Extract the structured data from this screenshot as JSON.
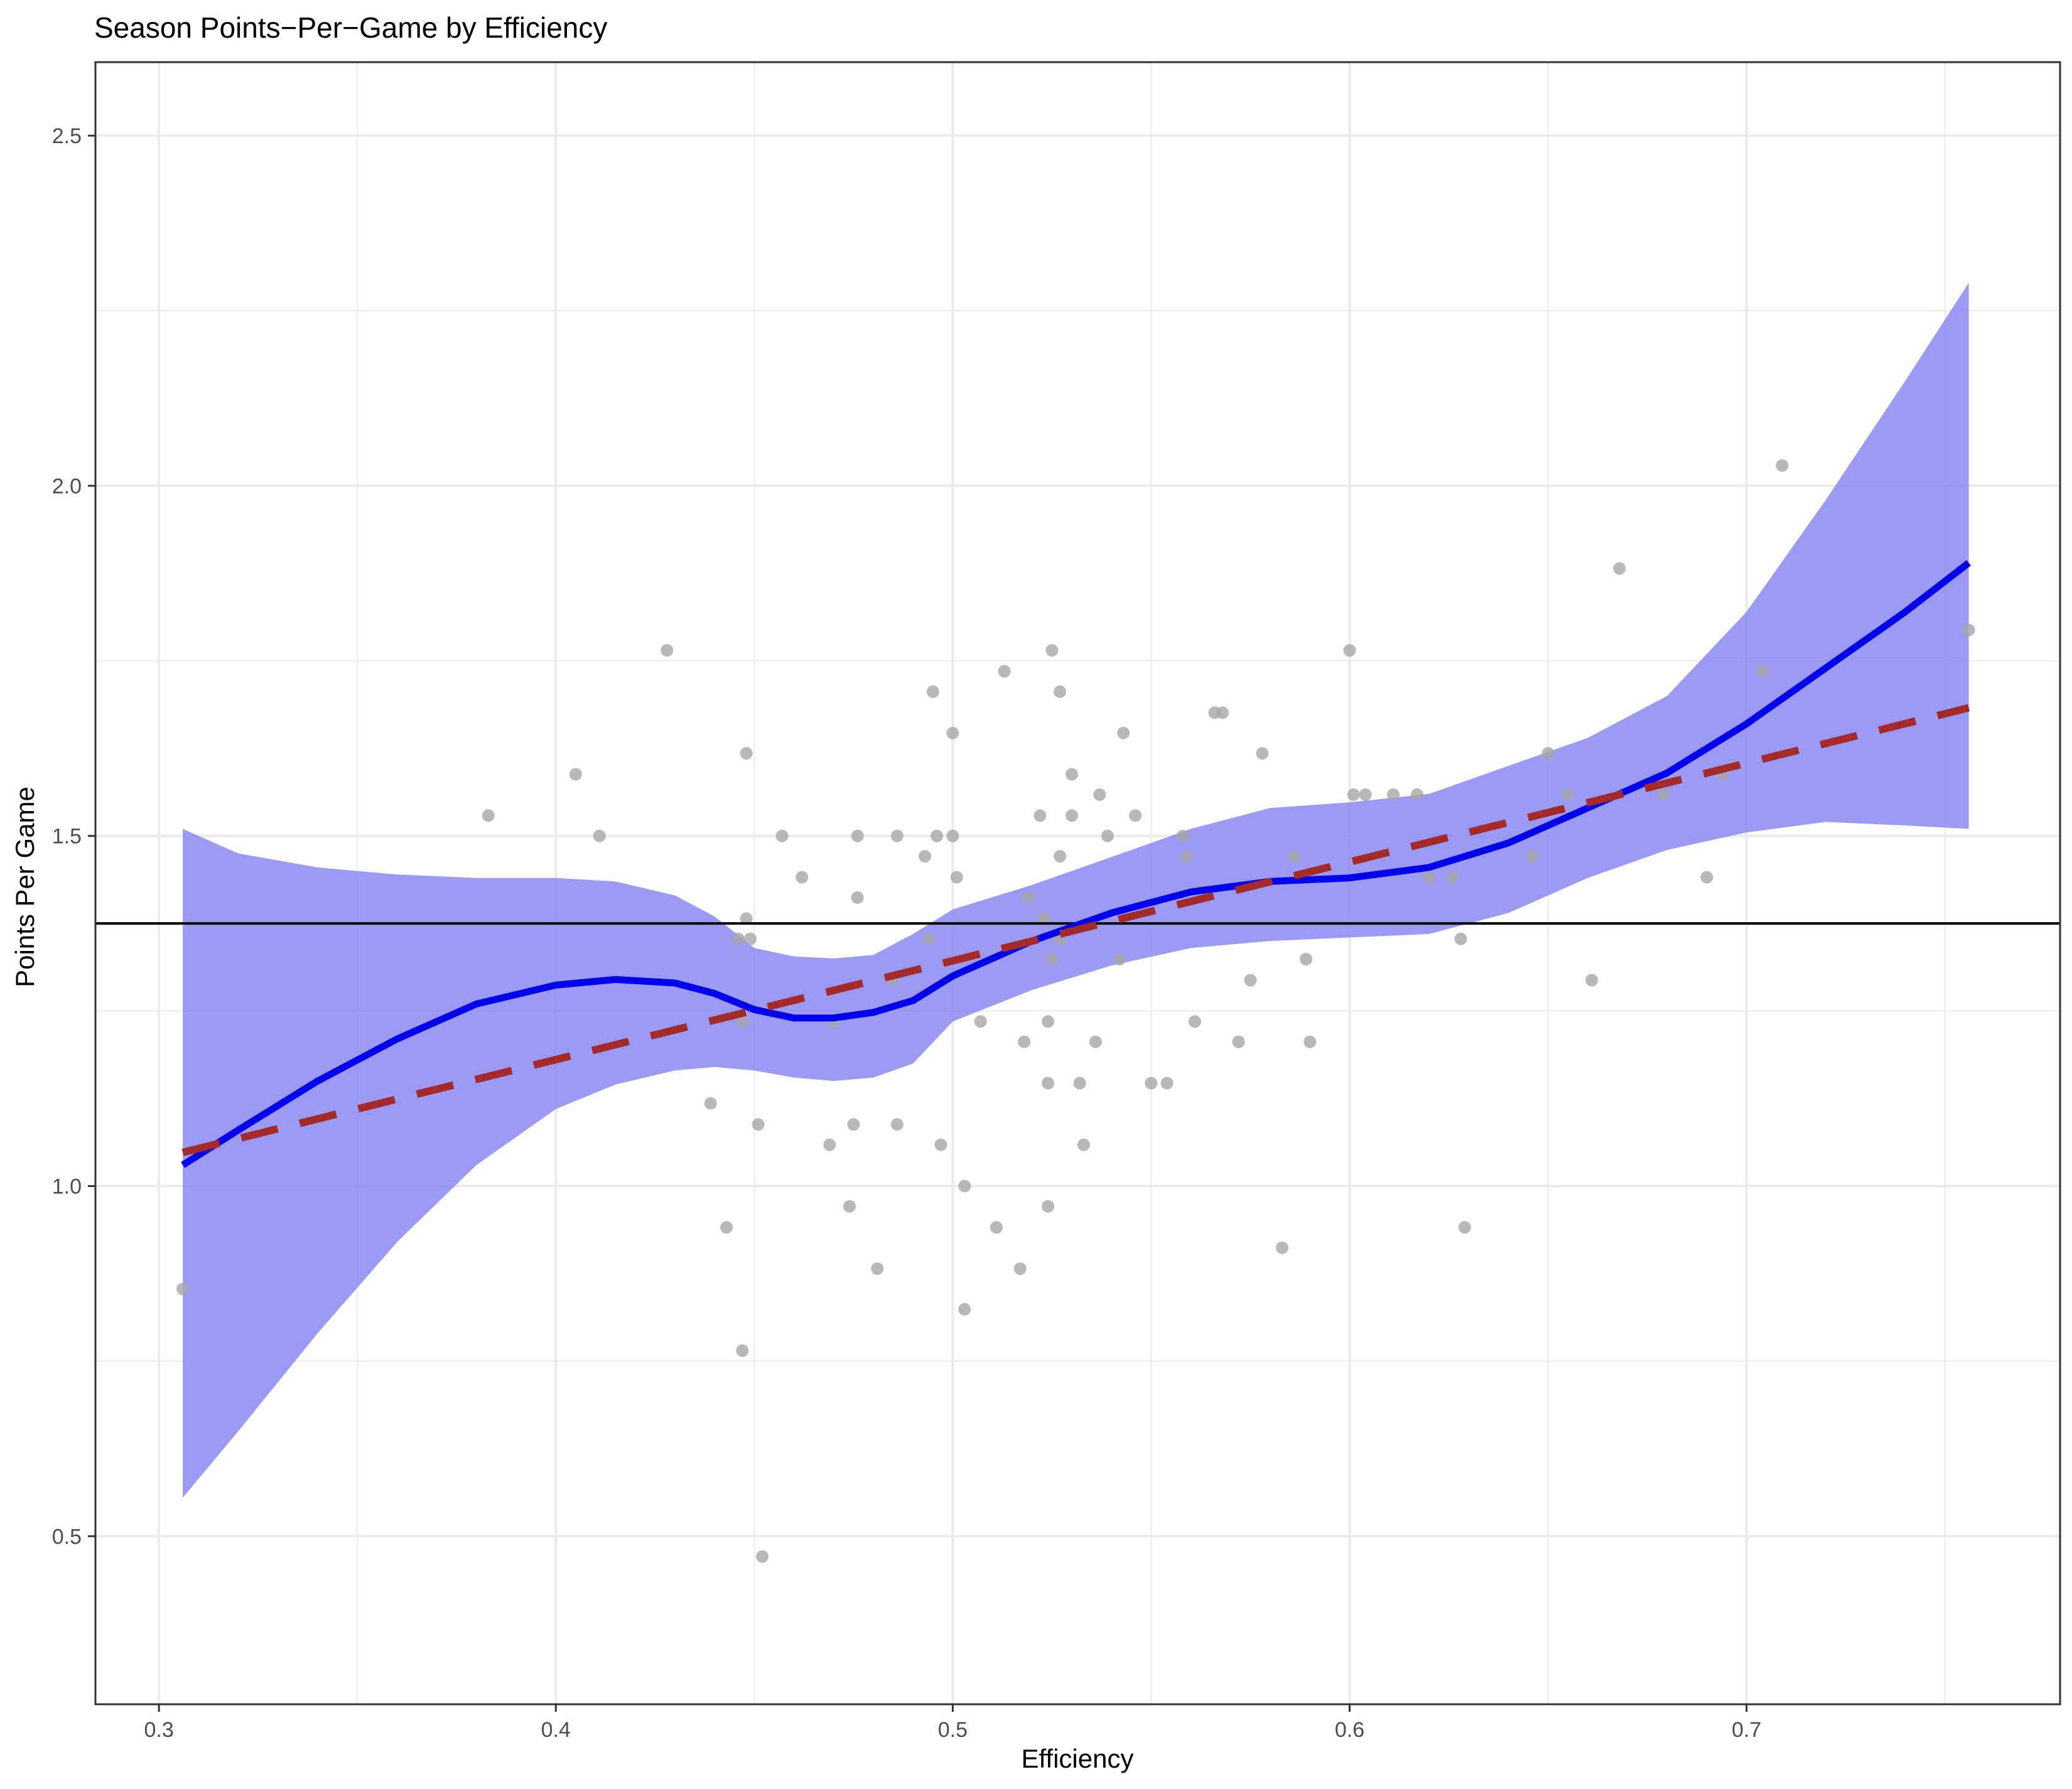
{
  "chart_data": {
    "type": "scatter",
    "title": "Season Points−Per−Game by Efficiency",
    "xlabel": "Efficiency",
    "ylabel": "Points Per Game",
    "xlim": [
      0.284,
      0.779
    ],
    "ylim": [
      0.26,
      2.605
    ],
    "x_ticks": [
      0.3,
      0.4,
      0.5,
      0.6,
      0.7
    ],
    "x_tick_labels": [
      "0.3",
      "0.4",
      "0.5",
      "0.6",
      "0.7"
    ],
    "y_ticks": [
      0.5,
      1.0,
      1.5,
      2.0,
      2.5
    ],
    "y_tick_labels": [
      "0.5",
      "1.0",
      "1.5",
      "2.0",
      "2.5"
    ],
    "grid": true,
    "reference_line_y": 1.375,
    "colors": {
      "points": "#a6a6a6",
      "smooth_line": "#0000ee",
      "band": "#8a8af5",
      "linear_fit": "#a52a2a",
      "reference": "#000000",
      "grid": "#ebebeb"
    },
    "points": [
      {
        "x": 0.306,
        "y": 0.853
      },
      {
        "x": 0.383,
        "y": 1.529
      },
      {
        "x": 0.405,
        "y": 1.588
      },
      {
        "x": 0.411,
        "y": 1.5
      },
      {
        "x": 0.428,
        "y": 1.765
      },
      {
        "x": 0.439,
        "y": 1.118
      },
      {
        "x": 0.443,
        "y": 0.941
      },
      {
        "x": 0.446,
        "y": 1.353
      },
      {
        "x": 0.447,
        "y": 1.235
      },
      {
        "x": 0.447,
        "y": 0.765
      },
      {
        "x": 0.448,
        "y": 1.382
      },
      {
        "x": 0.448,
        "y": 1.618
      },
      {
        "x": 0.449,
        "y": 1.353
      },
      {
        "x": 0.451,
        "y": 1.088
      },
      {
        "x": 0.452,
        "y": 0.471
      },
      {
        "x": 0.457,
        "y": 1.5
      },
      {
        "x": 0.462,
        "y": 1.441
      },
      {
        "x": 0.469,
        "y": 1.059
      },
      {
        "x": 0.47,
        "y": 1.235
      },
      {
        "x": 0.474,
        "y": 0.971
      },
      {
        "x": 0.475,
        "y": 1.088
      },
      {
        "x": 0.476,
        "y": 1.5
      },
      {
        "x": 0.476,
        "y": 1.412
      },
      {
        "x": 0.481,
        "y": 0.882
      },
      {
        "x": 0.485,
        "y": 1.294
      },
      {
        "x": 0.486,
        "y": 1.5
      },
      {
        "x": 0.486,
        "y": 1.088
      },
      {
        "x": 0.493,
        "y": 1.471
      },
      {
        "x": 0.494,
        "y": 1.353
      },
      {
        "x": 0.495,
        "y": 1.706
      },
      {
        "x": 0.496,
        "y": 1.5
      },
      {
        "x": 0.497,
        "y": 1.059
      },
      {
        "x": 0.5,
        "y": 1.647
      },
      {
        "x": 0.5,
        "y": 1.5
      },
      {
        "x": 0.501,
        "y": 1.441
      },
      {
        "x": 0.503,
        "y": 1.0
      },
      {
        "x": 0.503,
        "y": 0.824
      },
      {
        "x": 0.507,
        "y": 1.235
      },
      {
        "x": 0.511,
        "y": 0.941
      },
      {
        "x": 0.513,
        "y": 1.735
      },
      {
        "x": 0.517,
        "y": 0.882
      },
      {
        "x": 0.518,
        "y": 1.206
      },
      {
        "x": 0.519,
        "y": 1.412
      },
      {
        "x": 0.522,
        "y": 1.529
      },
      {
        "x": 0.523,
        "y": 1.382
      },
      {
        "x": 0.524,
        "y": 1.235
      },
      {
        "x": 0.524,
        "y": 1.147
      },
      {
        "x": 0.524,
        "y": 0.971
      },
      {
        "x": 0.525,
        "y": 1.765
      },
      {
        "x": 0.525,
        "y": 1.324
      },
      {
        "x": 0.527,
        "y": 1.353
      },
      {
        "x": 0.527,
        "y": 1.706
      },
      {
        "x": 0.527,
        "y": 1.471
      },
      {
        "x": 0.53,
        "y": 1.588
      },
      {
        "x": 0.53,
        "y": 1.529
      },
      {
        "x": 0.532,
        "y": 1.147
      },
      {
        "x": 0.533,
        "y": 1.059
      },
      {
        "x": 0.536,
        "y": 1.206
      },
      {
        "x": 0.537,
        "y": 1.559
      },
      {
        "x": 0.539,
        "y": 1.5
      },
      {
        "x": 0.542,
        "y": 1.324
      },
      {
        "x": 0.543,
        "y": 1.647
      },
      {
        "x": 0.546,
        "y": 1.529
      },
      {
        "x": 0.55,
        "y": 1.147
      },
      {
        "x": 0.554,
        "y": 1.147
      },
      {
        "x": 0.558,
        "y": 1.5
      },
      {
        "x": 0.559,
        "y": 1.471
      },
      {
        "x": 0.561,
        "y": 1.235
      },
      {
        "x": 0.566,
        "y": 1.676
      },
      {
        "x": 0.568,
        "y": 1.676
      },
      {
        "x": 0.572,
        "y": 1.206
      },
      {
        "x": 0.575,
        "y": 1.294
      },
      {
        "x": 0.578,
        "y": 1.618
      },
      {
        "x": 0.583,
        "y": 0.912
      },
      {
        "x": 0.586,
        "y": 1.471
      },
      {
        "x": 0.589,
        "y": 1.324
      },
      {
        "x": 0.59,
        "y": 1.206
      },
      {
        "x": 0.6,
        "y": 1.765
      },
      {
        "x": 0.601,
        "y": 1.559
      },
      {
        "x": 0.604,
        "y": 1.559
      },
      {
        "x": 0.611,
        "y": 1.559
      },
      {
        "x": 0.617,
        "y": 1.559
      },
      {
        "x": 0.62,
        "y": 1.441
      },
      {
        "x": 0.626,
        "y": 1.441
      },
      {
        "x": 0.628,
        "y": 1.353
      },
      {
        "x": 0.629,
        "y": 0.941
      },
      {
        "x": 0.646,
        "y": 1.471
      },
      {
        "x": 0.65,
        "y": 1.618
      },
      {
        "x": 0.655,
        "y": 1.559
      },
      {
        "x": 0.661,
        "y": 1.294
      },
      {
        "x": 0.668,
        "y": 1.882
      },
      {
        "x": 0.679,
        "y": 1.559
      },
      {
        "x": 0.69,
        "y": 1.441
      },
      {
        "x": 0.694,
        "y": 1.588
      },
      {
        "x": 0.704,
        "y": 1.735
      },
      {
        "x": 0.709,
        "y": 2.029
      },
      {
        "x": 0.756,
        "y": 1.794
      }
    ],
    "series": [
      {
        "kind": "smooth",
        "x": [
          0.306,
          0.32,
          0.34,
          0.36,
          0.38,
          0.4,
          0.415,
          0.43,
          0.44,
          0.45,
          0.46,
          0.47,
          0.48,
          0.49,
          0.5,
          0.52,
          0.54,
          0.56,
          0.58,
          0.6,
          0.62,
          0.64,
          0.66,
          0.68,
          0.7,
          0.72,
          0.74,
          0.756
        ],
        "y": [
          1.03,
          1.08,
          1.15,
          1.21,
          1.26,
          1.287,
          1.295,
          1.29,
          1.275,
          1.252,
          1.24,
          1.24,
          1.248,
          1.265,
          1.3,
          1.35,
          1.39,
          1.42,
          1.435,
          1.44,
          1.455,
          1.49,
          1.54,
          1.59,
          1.66,
          1.74,
          1.82,
          1.89
        ],
        "lower": [
          0.555,
          0.65,
          0.79,
          0.92,
          1.03,
          1.11,
          1.145,
          1.165,
          1.17,
          1.165,
          1.155,
          1.15,
          1.155,
          1.175,
          1.235,
          1.28,
          1.315,
          1.34,
          1.35,
          1.355,
          1.36,
          1.39,
          1.44,
          1.48,
          1.505,
          1.52,
          1.515,
          1.51
        ],
        "upper": [
          1.51,
          1.475,
          1.455,
          1.445,
          1.44,
          1.44,
          1.435,
          1.415,
          1.385,
          1.34,
          1.328,
          1.325,
          1.33,
          1.36,
          1.395,
          1.43,
          1.47,
          1.51,
          1.54,
          1.548,
          1.56,
          1.6,
          1.64,
          1.7,
          1.82,
          1.98,
          2.15,
          2.29
        ]
      },
      {
        "kind": "linear",
        "x": [
          0.306,
          0.756
        ],
        "y": [
          1.048,
          1.683
        ]
      }
    ]
  }
}
